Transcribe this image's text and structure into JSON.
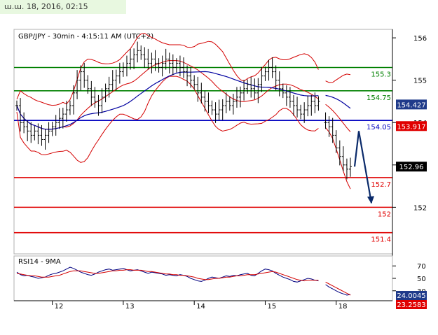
{
  "header": {
    "date_text": "ա.ա. 18, 2016, 02:15"
  },
  "chart_data": [
    {
      "type": "line",
      "title": "GBP/JPY - 30min - 4:15:11 AM (UTC+2)",
      "instrument": "GBP/JPY",
      "timeframe": "30min",
      "ylim": [
        150.9,
        156.2
      ],
      "y_ticks": [
        "156",
        "155",
        "154",
        "153",
        "152"
      ],
      "y_tick_values": [
        156,
        155,
        154,
        153,
        152
      ],
      "x_ticks": [
        "12",
        "13",
        "14",
        "15",
        "18"
      ],
      "x_tick_index": [
        10,
        30,
        50,
        70,
        90
      ],
      "n_bars": 95,
      "grid": false,
      "colors": {
        "price": "#000000",
        "bollinger": "#d40000",
        "moving_average": "#0000a0",
        "green_level": "#008000",
        "blue_level": "#0000c0",
        "red_level": "#e00000",
        "forecast_arrow": "#0a2a6a"
      },
      "levels": [
        {
          "value": 155.3,
          "label": "155.3",
          "color": "#008000"
        },
        {
          "value": 154.75,
          "label": "154.75",
          "color": "#008000"
        },
        {
          "value": 154.05,
          "label": "154.05",
          "color": "#0000c0"
        },
        {
          "value": 152.7,
          "label": "152.7",
          "color": "#e00000"
        },
        {
          "value": 152,
          "label": "152",
          "color": "#e00000"
        },
        {
          "value": 151.4,
          "label": "151.4",
          "color": "#e00000"
        }
      ],
      "price_badges": [
        {
          "value": 154.427,
          "label": "154.427",
          "bg": "#1f3a8a",
          "fg": "#ffffff"
        },
        {
          "value": 153.917,
          "label": "153.917",
          "bg": "#e00000",
          "fg": "#ffffff"
        },
        {
          "value": 152.96,
          "label": "152.96",
          "bg": "#000000",
          "fg": "#ffffff"
        }
      ],
      "series": [
        {
          "name": "close",
          "values": [
            154.4,
            154.0,
            153.9,
            153.8,
            153.7,
            153.8,
            153.7,
            153.6,
            153.7,
            153.8,
            153.9,
            154.0,
            154.1,
            154.2,
            154.3,
            154.4,
            154.7,
            155.0,
            155.2,
            155.0,
            154.8,
            154.6,
            154.5,
            154.4,
            154.6,
            154.8,
            154.9,
            155.0,
            155.1,
            155.2,
            155.3,
            155.4,
            155.5,
            155.6,
            155.7,
            155.6,
            155.5,
            155.4,
            155.5,
            155.4,
            155.3,
            155.4,
            155.5,
            155.4,
            155.3,
            155.4,
            155.3,
            155.2,
            155.1,
            155.0,
            154.9,
            154.7,
            154.6,
            154.5,
            154.4,
            154.3,
            154.2,
            154.3,
            154.4,
            154.5,
            154.4,
            154.5,
            154.6,
            154.7,
            154.8,
            154.9,
            154.8,
            154.7,
            154.9,
            155.1,
            155.2,
            155.3,
            155.2,
            155.0,
            154.8,
            154.7,
            154.6,
            154.5,
            154.4,
            154.3,
            154.2,
            154.3,
            154.4,
            154.5,
            154.4,
            154.5,
            null,
            154.0,
            153.9,
            153.7,
            153.4,
            153.2,
            153.0,
            152.9,
            152.96
          ]
        }
      ]
    },
    {
      "type": "line",
      "title": "RSI14 - 9MA",
      "y_ticks": [
        "70",
        "50",
        "30"
      ],
      "y_tick_values": [
        70,
        50,
        30
      ],
      "ylim": [
        14,
        86
      ],
      "value_badges": [
        {
          "value": 24.0045,
          "label": "24.0045",
          "bg": "#1f3a8a",
          "fg": "#ffffff"
        },
        {
          "value": 23.2583,
          "label": "23.2583",
          "bg": "#e00000",
          "fg": "#ffffff"
        }
      ],
      "series": [
        {
          "name": "RSI14",
          "values": [
            60,
            56,
            54,
            55,
            53,
            52,
            50,
            51,
            52,
            55,
            57,
            58,
            60,
            62,
            65,
            68,
            66,
            63,
            60,
            58,
            56,
            55,
            57,
            60,
            62,
            64,
            65,
            63,
            64,
            65,
            66,
            64,
            62,
            63,
            64,
            62,
            60,
            58,
            60,
            59,
            58,
            57,
            55,
            56,
            55,
            54,
            56,
            55,
            53,
            50,
            48,
            46,
            45,
            47,
            50,
            52,
            51,
            50,
            52,
            54,
            53,
            55,
            54,
            56,
            57,
            58,
            55,
            54,
            58,
            62,
            65,
            64,
            62,
            58,
            55,
            52,
            50,
            48,
            45,
            44,
            46,
            48,
            50,
            49,
            47,
            46,
            null,
            40,
            36,
            33,
            30,
            27,
            25,
            23,
            24
          ]
        },
        {
          "name": "9MA",
          "values": [
            58,
            57,
            56,
            55,
            54,
            54,
            53,
            52,
            52,
            52,
            53,
            54,
            55,
            57,
            59,
            61,
            62,
            62,
            62,
            61,
            60,
            59,
            58,
            58,
            59,
            60,
            61,
            62,
            62,
            63,
            63,
            64,
            64,
            63,
            63,
            63,
            62,
            61,
            61,
            60,
            59,
            58,
            57,
            57,
            56,
            56,
            55,
            55,
            54,
            53,
            52,
            50,
            49,
            48,
            48,
            49,
            50,
            50,
            51,
            52,
            52,
            53,
            54,
            54,
            55,
            56,
            56,
            56,
            57,
            58,
            59,
            60,
            61,
            60,
            58,
            56,
            54,
            52,
            50,
            48,
            47,
            46,
            47,
            47,
            47,
            47,
            null,
            44,
            41,
            38,
            35,
            32,
            29,
            26,
            23
          ]
        }
      ]
    }
  ]
}
